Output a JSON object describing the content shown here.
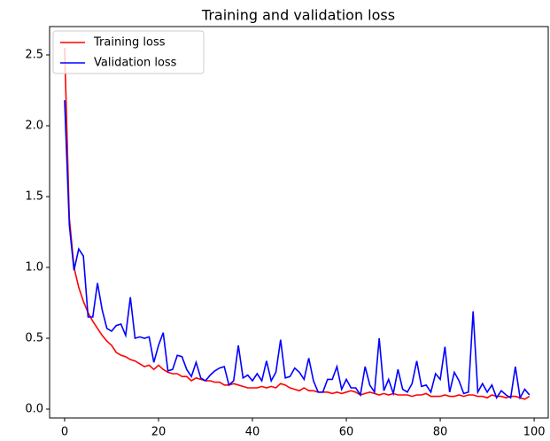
{
  "chart_data": {
    "type": "line",
    "title": "Training and validation loss",
    "x": [
      0,
      1,
      2,
      3,
      4,
      5,
      6,
      7,
      8,
      9,
      10,
      11,
      12,
      13,
      14,
      15,
      16,
      17,
      18,
      19,
      20,
      21,
      22,
      23,
      24,
      25,
      26,
      27,
      28,
      29,
      30,
      31,
      32,
      33,
      34,
      35,
      36,
      37,
      38,
      39,
      40,
      41,
      42,
      43,
      44,
      45,
      46,
      47,
      48,
      49,
      50,
      51,
      52,
      53,
      54,
      55,
      56,
      57,
      58,
      59,
      60,
      61,
      62,
      63,
      64,
      65,
      66,
      67,
      68,
      69,
      70,
      71,
      72,
      73,
      74,
      75,
      76,
      77,
      78,
      79,
      80,
      81,
      82,
      83,
      84,
      85,
      86,
      87,
      88,
      89,
      90,
      91,
      92,
      93,
      94,
      95,
      96,
      97,
      98,
      99
    ],
    "series": [
      {
        "name": "Training loss",
        "color": "#ff0000",
        "values": [
          2.55,
          1.35,
          1.0,
          0.86,
          0.76,
          0.68,
          0.62,
          0.57,
          0.52,
          0.48,
          0.45,
          0.4,
          0.38,
          0.37,
          0.35,
          0.34,
          0.32,
          0.3,
          0.31,
          0.28,
          0.31,
          0.28,
          0.26,
          0.25,
          0.25,
          0.23,
          0.23,
          0.2,
          0.22,
          0.21,
          0.2,
          0.2,
          0.19,
          0.19,
          0.17,
          0.17,
          0.18,
          0.17,
          0.16,
          0.15,
          0.15,
          0.15,
          0.16,
          0.15,
          0.16,
          0.15,
          0.18,
          0.17,
          0.15,
          0.14,
          0.13,
          0.15,
          0.13,
          0.13,
          0.12,
          0.12,
          0.12,
          0.11,
          0.12,
          0.11,
          0.12,
          0.13,
          0.12,
          0.1,
          0.11,
          0.12,
          0.11,
          0.1,
          0.11,
          0.1,
          0.11,
          0.1,
          0.1,
          0.1,
          0.09,
          0.1,
          0.1,
          0.11,
          0.09,
          0.09,
          0.09,
          0.1,
          0.09,
          0.09,
          0.1,
          0.09,
          0.1,
          0.1,
          0.09,
          0.09,
          0.08,
          0.1,
          0.09,
          0.09,
          0.08,
          0.09,
          0.09,
          0.08,
          0.07,
          0.09
        ]
      },
      {
        "name": "Validation loss",
        "color": "#0000ff",
        "values": [
          2.18,
          1.3,
          0.98,
          1.13,
          1.08,
          0.65,
          0.65,
          0.89,
          0.7,
          0.57,
          0.55,
          0.59,
          0.6,
          0.52,
          0.79,
          0.5,
          0.51,
          0.5,
          0.51,
          0.33,
          0.45,
          0.54,
          0.27,
          0.28,
          0.38,
          0.37,
          0.28,
          0.23,
          0.33,
          0.22,
          0.2,
          0.24,
          0.27,
          0.29,
          0.3,
          0.17,
          0.2,
          0.45,
          0.22,
          0.24,
          0.2,
          0.25,
          0.2,
          0.34,
          0.2,
          0.26,
          0.49,
          0.22,
          0.23,
          0.29,
          0.26,
          0.21,
          0.36,
          0.2,
          0.12,
          0.12,
          0.21,
          0.21,
          0.3,
          0.14,
          0.21,
          0.15,
          0.15,
          0.1,
          0.3,
          0.17,
          0.12,
          0.5,
          0.13,
          0.21,
          0.11,
          0.28,
          0.14,
          0.12,
          0.18,
          0.34,
          0.16,
          0.17,
          0.12,
          0.25,
          0.21,
          0.44,
          0.12,
          0.26,
          0.2,
          0.11,
          0.12,
          0.69,
          0.12,
          0.18,
          0.12,
          0.17,
          0.08,
          0.13,
          0.1,
          0.08,
          0.3,
          0.08,
          0.14,
          0.1
        ]
      }
    ],
    "xlim": [
      -3.2,
      103.0
    ],
    "ylim": [
      -0.0625,
      2.7
    ],
    "xticks": [
      0,
      20,
      40,
      60,
      80,
      100
    ],
    "yticks": [
      {
        "value": 0,
        "label": "0.0"
      },
      0.5,
      {
        "value": 1,
        "label": "1.0"
      },
      1.5,
      {
        "value": 2,
        "label": "2.0"
      },
      2.5
    ],
    "legend": "upper left"
  }
}
